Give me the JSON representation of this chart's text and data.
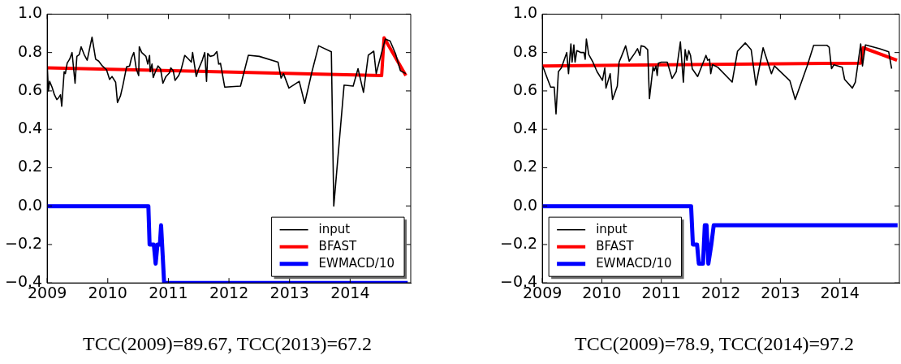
{
  "chart_data": [
    {
      "type": "line",
      "xlim": [
        2009,
        2015
      ],
      "xticks": [
        2009,
        2010,
        2011,
        2012,
        2013,
        2014
      ],
      "ylim": [
        -0.4,
        1.0
      ],
      "yticks": [
        {
          "value": -0.4,
          "label": "−0.4"
        },
        {
          "value": -0.2,
          "label": "−0.2"
        },
        {
          "value": 0,
          "label": "0.0"
        },
        {
          "value": 0.2,
          "label": "0.2"
        },
        {
          "value": 0.4,
          "label": "0.4"
        },
        {
          "value": 0.6,
          "label": "0.6"
        },
        {
          "value": 0.8,
          "label": "0.8"
        },
        {
          "value": 1.0,
          "label": "1.0"
        }
      ],
      "legend": "bottom right",
      "annotations": [
        "TCC(2009)=89.67, TCC(2013)=67.2"
      ],
      "series": [
        {
          "name": "input",
          "color": "#000000",
          "x": [
            2009.0,
            2009.02,
            2009.04,
            2009.08,
            2009.12,
            2009.16,
            2009.19,
            2009.22,
            2009.24,
            2009.28,
            2009.3,
            2009.33,
            2009.37,
            2009.41,
            2009.46,
            2009.49,
            2009.53,
            2009.56,
            2009.61,
            2009.66,
            2009.74,
            2009.8,
            2009.85,
            2009.91,
            2009.98,
            2010.03,
            2010.07,
            2010.13,
            2010.16,
            2010.21,
            2010.25,
            2010.31,
            2010.36,
            2010.39,
            2010.43,
            2010.47,
            2010.51,
            2010.52,
            2010.56,
            2010.63,
            2010.66,
            2010.69,
            2010.7,
            2010.73,
            2010.75,
            2010.78,
            2010.83,
            2010.87,
            2010.91,
            2010.96,
            2011.02,
            2011.04,
            2011.08,
            2011.11,
            2011.17,
            2011.21,
            2011.27,
            2011.32,
            2011.38,
            2011.4,
            2011.46,
            2011.5,
            2011.56,
            2011.6,
            2011.63,
            2011.65,
            2011.69,
            2011.75,
            2011.8,
            2011.83,
            2011.86,
            2011.93,
            2012.19,
            2012.32,
            2012.5,
            2012.81,
            2012.86,
            2012.9,
            2012.99,
            2013.16,
            2013.25,
            2013.37,
            2013.48,
            2013.69,
            2013.73,
            2013.9,
            2014.05,
            2014.13,
            2014.22,
            2014.3,
            2014.39,
            2014.43,
            2014.52,
            2014.58,
            2014.66,
            2014.75,
            2014.83,
            2014.92
          ],
          "values": [
            0.74,
            0.6,
            0.65,
            0.62,
            0.58,
            0.555,
            0.565,
            0.58,
            0.52,
            0.7,
            0.69,
            0.745,
            0.765,
            0.8,
            0.64,
            0.78,
            0.79,
            0.83,
            0.79,
            0.76,
            0.88,
            0.765,
            0.755,
            0.73,
            0.71,
            0.66,
            0.675,
            0.645,
            0.54,
            0.575,
            0.63,
            0.725,
            0.73,
            0.77,
            0.8,
            0.715,
            0.68,
            0.83,
            0.8,
            0.78,
            0.74,
            0.785,
            0.7,
            0.74,
            0.67,
            0.695,
            0.73,
            0.715,
            0.64,
            0.675,
            0.695,
            0.72,
            0.705,
            0.655,
            0.68,
            0.71,
            0.785,
            0.77,
            0.75,
            0.8,
            0.675,
            0.715,
            0.76,
            0.8,
            0.65,
            0.795,
            0.78,
            0.785,
            0.805,
            0.74,
            0.744,
            0.62,
            0.625,
            0.786,
            0.78,
            0.75,
            0.667,
            0.69,
            0.615,
            0.65,
            0.535,
            0.7,
            0.835,
            0.804,
            0.0,
            0.63,
            0.625,
            0.716,
            0.593,
            0.786,
            0.807,
            0.69,
            0.8,
            0.87,
            0.86,
            0.793,
            0.705,
            0.69
          ]
        },
        {
          "name": "BFAST",
          "color": "#ff0000",
          "x": [
            2009.0,
            2014.52,
            2014.56,
            2014.92
          ],
          "values": [
            0.72,
            0.68,
            0.877,
            0.68
          ]
        },
        {
          "name": "EWMACD/10",
          "color": "#0000ff",
          "x": [
            2009.0,
            2010.67,
            2010.69,
            2010.76,
            2010.79,
            2010.82,
            2010.86,
            2010.88,
            2010.93,
            2014.95
          ],
          "values": [
            0,
            0,
            -0.2,
            -0.2,
            -0.3,
            -0.2,
            -0.2,
            -0.1,
            -0.4,
            -0.4
          ]
        }
      ]
    },
    {
      "type": "line",
      "xlim": [
        2009,
        2015
      ],
      "xticks": [
        2009,
        2010,
        2011,
        2012,
        2013,
        2014
      ],
      "ylim": [
        -0.4,
        1.0
      ],
      "yticks": [
        {
          "value": -0.4,
          "label": "−0.4"
        },
        {
          "value": -0.2,
          "label": "−0.2"
        },
        {
          "value": 0,
          "label": "0.0"
        },
        {
          "value": 0.2,
          "label": "0.2"
        },
        {
          "value": 0.4,
          "label": "0.4"
        },
        {
          "value": 0.6,
          "label": "0.6"
        },
        {
          "value": 0.8,
          "label": "0.8"
        },
        {
          "value": 1.0,
          "label": "1.0"
        }
      ],
      "legend": "bottom left",
      "annotations": [
        "TCC(2009)=78.9, TCC(2014)=97.2"
      ],
      "series": [
        {
          "name": "input",
          "color": "#000000",
          "x": [
            2009.0,
            2009.03,
            2009.09,
            2009.14,
            2009.2,
            2009.23,
            2009.27,
            2009.32,
            2009.41,
            2009.44,
            2009.48,
            2009.5,
            2009.53,
            2009.55,
            2009.58,
            2009.65,
            2009.7,
            2009.72,
            2009.74,
            2009.78,
            2009.85,
            2009.92,
            2010.01,
            2010.05,
            2010.07,
            2010.14,
            2010.18,
            2010.26,
            2010.29,
            2010.33,
            2010.4,
            2010.46,
            2010.55,
            2010.6,
            2010.64,
            2010.66,
            2010.72,
            2010.77,
            2010.8,
            2010.86,
            2010.88,
            2010.91,
            2010.93,
            2010.95,
            2011.0,
            2011.1,
            2011.18,
            2011.25,
            2011.32,
            2011.37,
            2011.4,
            2011.43,
            2011.46,
            2011.49,
            2011.52,
            2011.61,
            2011.75,
            2011.78,
            2011.81,
            2011.83,
            2011.86,
            2011.95,
            2012.19,
            2012.28,
            2012.41,
            2012.51,
            2012.59,
            2012.71,
            2012.85,
            2012.9,
            2013.16,
            2013.25,
            2013.45,
            2013.56,
            2013.78,
            2013.82,
            2013.86,
            2013.9,
            2014.04,
            2014.08,
            2014.21,
            2014.26,
            2014.35,
            2014.38,
            2014.43,
            2014.67,
            2014.82,
            2014.87
          ],
          "values": [
            0.73,
            0.71,
            0.66,
            0.62,
            0.62,
            0.48,
            0.7,
            0.72,
            0.8,
            0.69,
            0.845,
            0.75,
            0.84,
            0.75,
            0.81,
            0.8,
            0.8,
            0.765,
            0.87,
            0.79,
            0.75,
            0.7,
            0.655,
            0.72,
            0.615,
            0.69,
            0.555,
            0.625,
            0.75,
            0.78,
            0.835,
            0.755,
            0.795,
            0.82,
            0.785,
            0.835,
            0.83,
            0.815,
            0.56,
            0.725,
            0.705,
            0.73,
            0.68,
            0.745,
            0.75,
            0.75,
            0.665,
            0.7,
            0.855,
            0.645,
            0.815,
            0.76,
            0.81,
            0.785,
            0.715,
            0.675,
            0.785,
            0.76,
            0.765,
            0.69,
            0.737,
            0.723,
            0.646,
            0.807,
            0.85,
            0.814,
            0.63,
            0.825,
            0.69,
            0.73,
            0.653,
            0.555,
            0.73,
            0.838,
            0.838,
            0.828,
            0.716,
            0.736,
            0.723,
            0.66,
            0.615,
            0.646,
            0.845,
            0.73,
            0.84,
            0.82,
            0.804,
            0.716
          ]
        },
        {
          "name": "BFAST",
          "color": "#ff0000",
          "x": [
            2009.0,
            2014.35,
            2014.39,
            2014.96
          ],
          "values": [
            0.73,
            0.745,
            0.825,
            0.76
          ]
        },
        {
          "name": "EWMACD/10",
          "color": "#0000ff",
          "x": [
            2009.0,
            2011.5,
            2011.53,
            2011.6,
            2011.63,
            2011.7,
            2011.73,
            2011.76,
            2011.79,
            2011.84,
            2011.88,
            2014.97
          ],
          "values": [
            0,
            0,
            -0.2,
            -0.2,
            -0.3,
            -0.3,
            -0.1,
            -0.1,
            -0.3,
            -0.2,
            -0.1,
            -0.1
          ]
        }
      ]
    }
  ]
}
